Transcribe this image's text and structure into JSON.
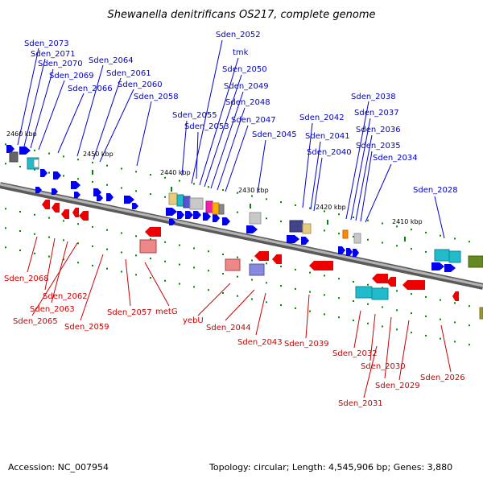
{
  "title": "Shewanella denitrificans OS217, complete genome",
  "footer": {
    "accession": "Accession: NC_007954",
    "summary": "Topology: circular; Length: 4,545,906 bp; Genes: 3,880"
  },
  "colors": {
    "forward_gene": "#0000ee",
    "reverse_gene": "#ee0000",
    "forward_label": "#0000cc",
    "reverse_label": "#cc0000",
    "backbone": "#808080",
    "tick": "#008800"
  },
  "ticks": [
    "2460 kbp",
    "2450 kbp",
    "2440 kbp",
    "2430 kbp",
    "2420 kbp",
    "2410 kbp"
  ],
  "forward_labels": [
    "Sden_2073",
    "Sden_2071",
    "Sden_2070",
    "Sden_2069",
    "Sden_2066",
    "Sden_2064",
    "Sden_2061",
    "Sden_2060",
    "Sden_2058",
    "Sden_2055",
    "Sden_2053",
    "Sden_2052",
    "tmk",
    "Sden_2050",
    "Sden_2049",
    "Sden_2048",
    "Sden_2047",
    "Sden_2045",
    "Sden_2042",
    "Sden_2041",
    "Sden_2040",
    "Sden_2038",
    "Sden_2037",
    "Sden_2036",
    "Sden_2035",
    "Sden_2034",
    "Sden_2028"
  ],
  "reverse_labels": [
    "Sden_2068",
    "Sden_2062",
    "Sden_2063",
    "Sden_2065",
    "Sden_2059",
    "Sden_2057",
    "metG",
    "yebU",
    "Sden_2044",
    "Sden_2043",
    "Sden_2039",
    "Sden_2032",
    "Sden_2030",
    "Sden_2029",
    "Sden_2031",
    "Sden_2026"
  ]
}
